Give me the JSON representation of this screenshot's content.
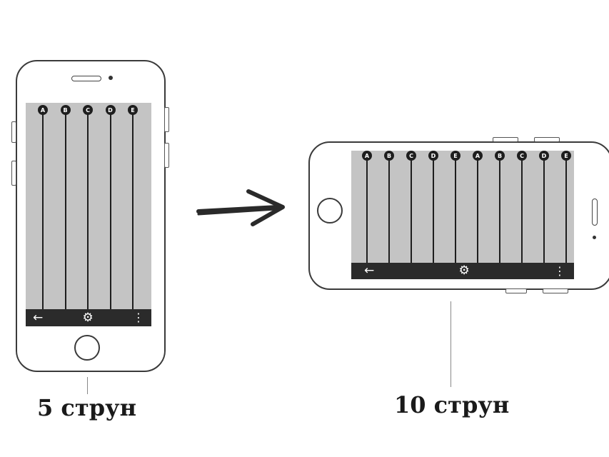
{
  "portrait": {
    "notes": [
      "A",
      "B",
      "C",
      "D",
      "E"
    ],
    "caption": "5 струн",
    "nav": {
      "back_icon": "arrow-left-icon",
      "settings_icon": "gear-icon",
      "menu_icon": "more-vert-icon"
    }
  },
  "landscape": {
    "notes": [
      "A",
      "B",
      "C",
      "D",
      "E",
      "A",
      "B",
      "C",
      "D",
      "E"
    ],
    "caption": "10 струн",
    "nav": {
      "back_icon": "arrow-left-icon",
      "settings_icon": "gear-icon",
      "menu_icon": "more-vert-icon"
    }
  },
  "colors": {
    "screen": "#c4c4c4",
    "string": "#1e1e1e",
    "navbar": "#2b2b2b",
    "outline": "#3a3a3a"
  }
}
